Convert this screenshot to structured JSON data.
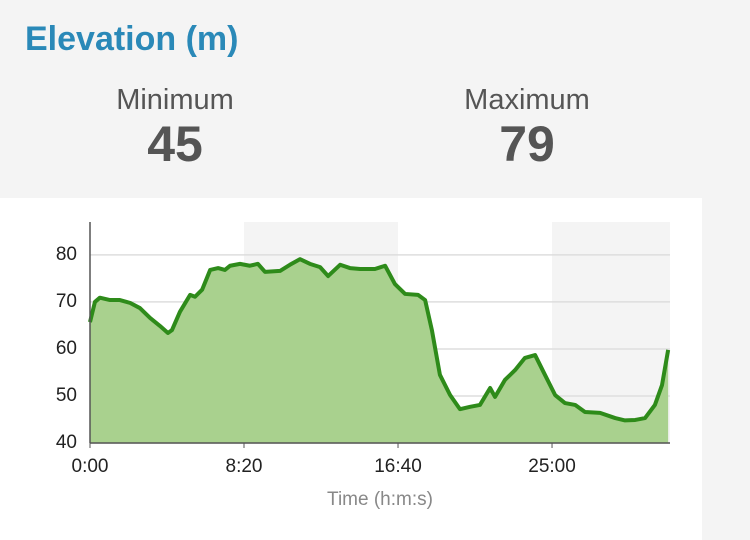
{
  "header": {
    "title": "Elevation (m)"
  },
  "stats": [
    {
      "label": "Minimum",
      "value": 45
    },
    {
      "label": "Maximum",
      "value": 79
    }
  ],
  "chart_data": {
    "type": "area",
    "xlabel": "Time (h:m:s)",
    "color": "#2e8b1a",
    "fill": "#a9d18e",
    "grid": true,
    "x": [
      0,
      16,
      32,
      65,
      97,
      130,
      162,
      195,
      227,
      253,
      266,
      292,
      325,
      341,
      364,
      390,
      416,
      438,
      455,
      487,
      519,
      545,
      568,
      617,
      649,
      682,
      714,
      747,
      773,
      812,
      844,
      877,
      925,
      958,
      990,
      1023,
      1065,
      1088,
      1110,
      1136,
      1169,
      1201,
      1234,
      1266,
      1299,
      1315,
      1347,
      1380,
      1412,
      1445,
      1477,
      1510,
      1542,
      1575,
      1607,
      1656,
      1705,
      1737,
      1770,
      1802,
      1834,
      1857,
      1877
    ],
    "values": [
      65.7,
      70,
      70.9,
      70.4,
      70.4,
      69.8,
      68.7,
      66.6,
      64.9,
      63.4,
      64,
      67.9,
      71.5,
      71.1,
      72.6,
      76.8,
      77.2,
      76.8,
      77.7,
      78.1,
      77.7,
      78.1,
      76.4,
      76.6,
      77.9,
      79.1,
      78.1,
      77.4,
      75.5,
      77.9,
      77.2,
      77,
      77,
      77.7,
      73.8,
      71.7,
      71.5,
      70.4,
      64,
      54.5,
      50.2,
      47.2,
      47.7,
      48.1,
      51.7,
      49.8,
      53.4,
      55.5,
      58.1,
      58.7,
      54.5,
      50.2,
      48.5,
      48.1,
      46.6,
      46.4,
      45.3,
      44.8,
      44.9,
      45.3,
      48.1,
      52.3,
      59.8
    ],
    "xlim": [
      0,
      1883
    ],
    "xticks": [
      {
        "value": 0,
        "label": "0:00"
      },
      {
        "value": 500,
        "label": "8:20"
      },
      {
        "value": 1000,
        "label": "16:40"
      },
      {
        "value": 1500,
        "label": "25:00"
      }
    ],
    "ylim": [
      40,
      87
    ],
    "yticks": [
      40,
      50,
      60,
      70,
      80
    ]
  }
}
